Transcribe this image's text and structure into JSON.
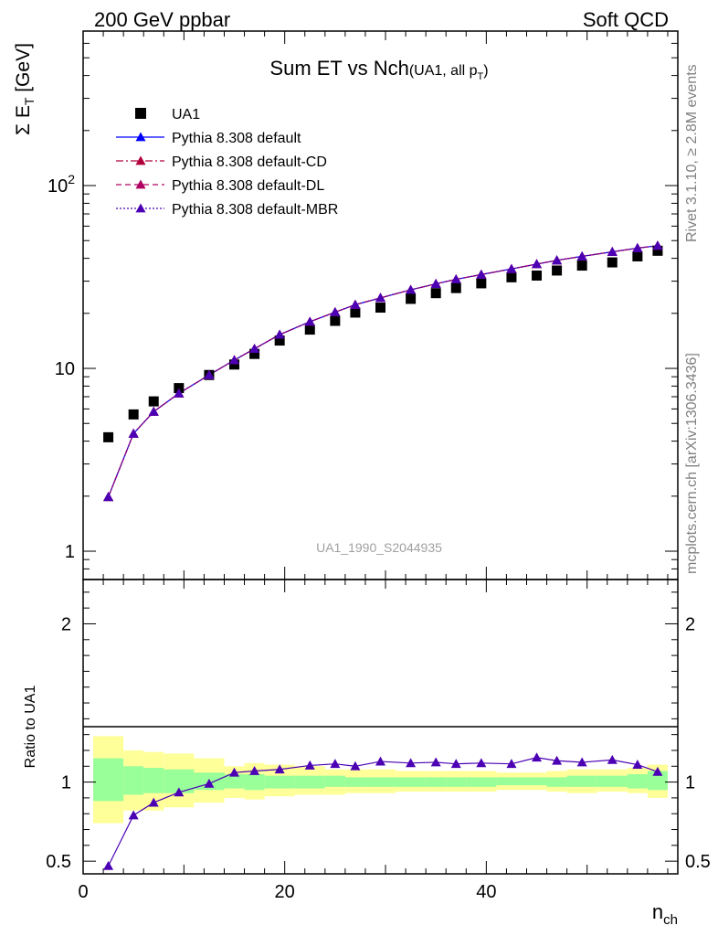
{
  "header": {
    "left": "200 GeV ppbar",
    "right": "Soft QCD"
  },
  "side_labels": {
    "rivet": "Rivet 3.1.10, ≥ 2.8M events",
    "mcplots": "mcplots.cern.ch [arXiv:1306.3436]"
  },
  "watermark": "UA1_1990_S2044935",
  "chart_data": [
    {
      "type": "scatter",
      "title": "Sum ET vs Nch",
      "title_suffix": "(UA1, all p",
      "title_suffix_sub": "T",
      "title_suffix_end": ")",
      "ylabel": "Σ E",
      "ylabel_sub": "T",
      "ylabel_unit": " [GeV]",
      "yscale": "log",
      "xlim": [
        0,
        59
      ],
      "ylim": [
        0.7,
        700
      ],
      "y_tick_labels": [
        {
          "value": 1,
          "label": "1"
        },
        {
          "value": 10,
          "label": "10"
        },
        {
          "value": 100,
          "label": "10",
          "sup": "2"
        }
      ],
      "legend_position": "top-left",
      "x": [
        2.5,
        5,
        7,
        9.5,
        12.5,
        15,
        17,
        19.5,
        22.5,
        25,
        27,
        29.5,
        32.5,
        35,
        37,
        39.5,
        42.5,
        45,
        47,
        49.5,
        52.5,
        55,
        57
      ],
      "series": [
        {
          "name": "UA1",
          "color": "#000000",
          "marker": "square",
          "values": [
            4.2,
            5.6,
            6.6,
            7.8,
            9.2,
            10.5,
            12,
            14.2,
            16.3,
            18.2,
            20.2,
            21.5,
            24,
            25.8,
            27.5,
            29.2,
            31.5,
            32.2,
            34.3,
            36.5,
            38,
            41,
            44
          ]
        },
        {
          "name": "Pythia 8.308 default",
          "color": "#0000ff",
          "marker": "triangle",
          "line": "solid",
          "values": [
            1.98,
            4.4,
            5.8,
            7.3,
            9.2,
            11.1,
            12.8,
            15.3,
            18.0,
            20.3,
            22.3,
            24.3,
            26.9,
            29.0,
            30.7,
            32.6,
            35.0,
            37.2,
            39.0,
            41.0,
            43.4,
            45.5,
            46.9
          ]
        },
        {
          "name": "Pythia 8.308 default-CD",
          "color": "#b0003c",
          "marker": "triangle",
          "line": "dashdot",
          "values": [
            1.98,
            4.4,
            5.8,
            7.3,
            9.2,
            11.1,
            12.8,
            15.3,
            18.0,
            20.3,
            22.3,
            24.3,
            26.9,
            29.0,
            30.7,
            32.6,
            35.0,
            37.2,
            39.0,
            41.0,
            43.4,
            45.5,
            46.9
          ]
        },
        {
          "name": "Pythia 8.308 default-DL",
          "color": "#b00060",
          "marker": "triangle",
          "line": "dashed",
          "values": [
            1.98,
            4.4,
            5.8,
            7.3,
            9.2,
            11.1,
            12.8,
            15.3,
            18.0,
            20.3,
            22.3,
            24.3,
            26.9,
            29.0,
            30.7,
            32.6,
            35.0,
            37.2,
            39.0,
            41.0,
            43.4,
            45.5,
            46.9
          ]
        },
        {
          "name": "Pythia 8.308 default-MBR",
          "color": "#4b00b4",
          "marker": "triangle",
          "line": "dotted",
          "values": [
            1.98,
            4.4,
            5.8,
            7.3,
            9.2,
            11.1,
            12.8,
            15.3,
            18.0,
            20.3,
            22.3,
            24.3,
            26.9,
            29.0,
            30.7,
            32.6,
            35.0,
            37.2,
            39.0,
            41.0,
            43.4,
            45.5,
            46.9
          ]
        }
      ]
    },
    {
      "type": "line",
      "ylabel": "Ratio to UA1",
      "xlabel": "n",
      "xlabel_sub": "ch",
      "xlim": [
        0,
        59
      ],
      "ylim": [
        0.42,
        2.28
      ],
      "x_tick_labels": [
        {
          "value": 0,
          "label": "0"
        },
        {
          "value": 20,
          "label": "20"
        },
        {
          "value": 40,
          "label": "40"
        }
      ],
      "y_tick_labels": [
        {
          "value": 0.5,
          "label": "0.5"
        },
        {
          "value": 1,
          "label": "1"
        },
        {
          "value": 2,
          "label": "2"
        }
      ],
      "bands": {
        "colors": {
          "outer": "#ffff99",
          "inner": "#99ff99"
        },
        "bins": [
          {
            "x0": 1,
            "x1": 4,
            "outer": [
              0.74,
              1.29
            ],
            "inner": [
              0.88,
              1.15
            ]
          },
          {
            "x0": 4,
            "x1": 6,
            "outer": [
              0.82,
              1.2
            ],
            "inner": [
              0.92,
              1.1
            ]
          },
          {
            "x0": 6,
            "x1": 8,
            "outer": [
              0.82,
              1.19
            ],
            "inner": [
              0.93,
              1.09
            ]
          },
          {
            "x0": 8,
            "x1": 11,
            "outer": [
              0.84,
              1.18
            ],
            "inner": [
              0.93,
              1.08
            ]
          },
          {
            "x0": 11,
            "x1": 14,
            "outer": [
              0.87,
              1.15
            ],
            "inner": [
              0.95,
              1.06
            ]
          },
          {
            "x0": 14,
            "x1": 16,
            "outer": [
              0.9,
              1.1
            ],
            "inner": [
              0.96,
              1.05
            ]
          },
          {
            "x0": 16,
            "x1": 18,
            "outer": [
              0.89,
              1.12
            ],
            "inner": [
              0.95,
              1.05
            ]
          },
          {
            "x0": 18,
            "x1": 21,
            "outer": [
              0.91,
              1.11
            ],
            "inner": [
              0.96,
              1.04
            ]
          },
          {
            "x0": 21,
            "x1": 24,
            "outer": [
              0.92,
              1.1
            ],
            "inner": [
              0.96,
              1.04
            ]
          },
          {
            "x0": 24,
            "x1": 26,
            "outer": [
              0.92,
              1.08
            ],
            "inner": [
              0.97,
              1.04
            ]
          },
          {
            "x0": 26,
            "x1": 28,
            "outer": [
              0.93,
              1.08
            ],
            "inner": [
              0.97,
              1.03
            ]
          },
          {
            "x0": 28,
            "x1": 31,
            "outer": [
              0.93,
              1.08
            ],
            "inner": [
              0.97,
              1.03
            ]
          },
          {
            "x0": 31,
            "x1": 34,
            "outer": [
              0.94,
              1.07
            ],
            "inner": [
              0.97,
              1.03
            ]
          },
          {
            "x0": 34,
            "x1": 36,
            "outer": [
              0.94,
              1.07
            ],
            "inner": [
              0.97,
              1.03
            ]
          },
          {
            "x0": 36,
            "x1": 38,
            "outer": [
              0.94,
              1.07
            ],
            "inner": [
              0.97,
              1.03
            ]
          },
          {
            "x0": 38,
            "x1": 41,
            "outer": [
              0.94,
              1.07
            ],
            "inner": [
              0.97,
              1.03
            ]
          },
          {
            "x0": 41,
            "x1": 44,
            "outer": [
              0.95,
              1.06
            ],
            "inner": [
              0.98,
              1.03
            ]
          },
          {
            "x0": 44,
            "x1": 46,
            "outer": [
              0.95,
              1.06
            ],
            "inner": [
              0.98,
              1.03
            ]
          },
          {
            "x0": 46,
            "x1": 48,
            "outer": [
              0.94,
              1.07
            ],
            "inner": [
              0.97,
              1.03
            ]
          },
          {
            "x0": 48,
            "x1": 51,
            "outer": [
              0.93,
              1.08
            ],
            "inner": [
              0.97,
              1.04
            ]
          },
          {
            "x0": 51,
            "x1": 54,
            "outer": [
              0.94,
              1.08
            ],
            "inner": [
              0.97,
              1.04
            ]
          },
          {
            "x0": 54,
            "x1": 56,
            "outer": [
              0.93,
              1.09
            ],
            "inner": [
              0.96,
              1.05
            ]
          },
          {
            "x0": 56,
            "x1": 58,
            "outer": [
              0.9,
              1.11
            ],
            "inner": [
              0.95,
              1.07
            ]
          }
        ]
      },
      "x": [
        2.5,
        5,
        7,
        9.5,
        12.5,
        15,
        17,
        19.5,
        22.5,
        25,
        27,
        29.5,
        32.5,
        35,
        37,
        39.5,
        42.5,
        45,
        47,
        49.5,
        52.5,
        55,
        57
      ],
      "series": [
        {
          "name": "Pythia 8.308 default",
          "color": "#4b00b4",
          "values": [
            0.47,
            0.79,
            0.87,
            0.935,
            0.99,
            1.06,
            1.07,
            1.08,
            1.105,
            1.115,
            1.1,
            1.13,
            1.12,
            1.125,
            1.115,
            1.12,
            1.115,
            1.155,
            1.135,
            1.125,
            1.14,
            1.11,
            1.065
          ]
        }
      ]
    }
  ]
}
